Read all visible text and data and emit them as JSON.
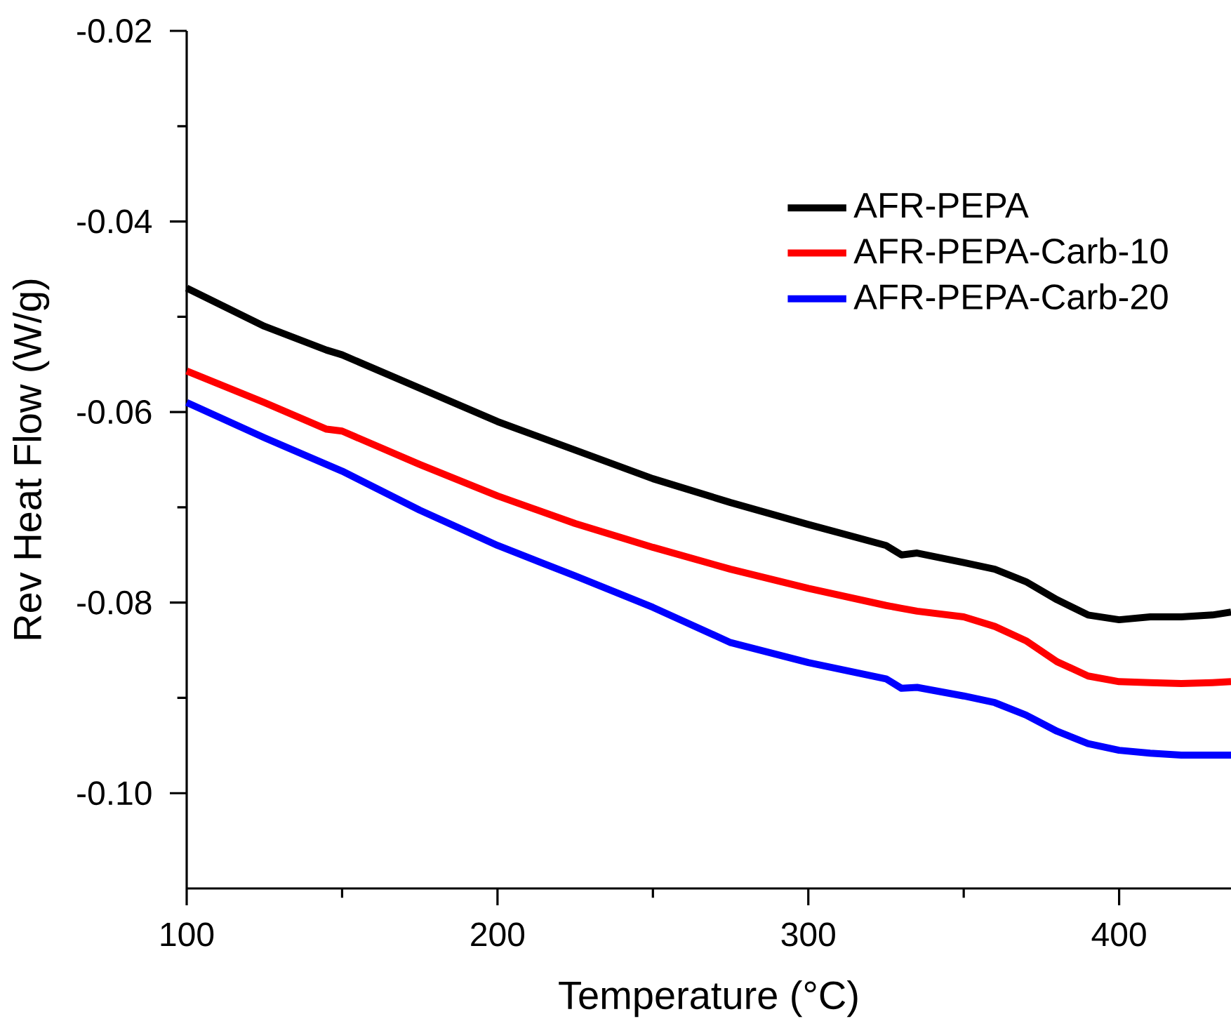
{
  "chart_data": {
    "type": "line",
    "xlabel": "Temperature (°C)",
    "ylabel": "Rev Heat Flow (W/g)",
    "xlim": [
      100,
      436
    ],
    "ylim": [
      -0.11,
      -0.02
    ],
    "xticks": [
      100,
      200,
      300,
      400
    ],
    "yticks": [
      -0.02,
      -0.04,
      -0.06,
      -0.08,
      {
        "value": -0.1,
        "label": "-0.10"
      }
    ],
    "legend": "top right",
    "grid": false,
    "marker": "none",
    "line_style": "solid",
    "x": [
      100,
      125,
      145,
      150,
      175,
      200,
      225,
      250,
      275,
      300,
      325,
      330,
      335,
      350,
      360,
      370,
      380,
      390,
      400,
      410,
      420,
      430,
      436
    ],
    "series": [
      {
        "name": "AFR-PEPA",
        "color": "#000000",
        "values": [
          -0.047,
          -0.051,
          -0.0535,
          -0.054,
          -0.0575,
          -0.061,
          -0.064,
          -0.067,
          -0.0695,
          -0.0718,
          -0.074,
          -0.075,
          -0.0748,
          -0.0758,
          -0.0765,
          -0.0778,
          -0.0797,
          -0.0813,
          -0.0818,
          -0.0815,
          -0.0815,
          -0.0813,
          -0.081
        ]
      },
      {
        "name": "AFR-PEPA-Carb-10",
        "color": "#ff0000",
        "values": [
          -0.0557,
          -0.059,
          -0.0618,
          -0.062,
          -0.0655,
          -0.0688,
          -0.0717,
          -0.0742,
          -0.0765,
          -0.0785,
          -0.0803,
          -0.0806,
          -0.0809,
          -0.0815,
          -0.0825,
          -0.084,
          -0.0862,
          -0.0877,
          -0.0883,
          -0.0884,
          -0.0885,
          -0.0884,
          -0.0883
        ]
      },
      {
        "name": "AFR-PEPA-Carb-20",
        "color": "#0000ff",
        "values": [
          -0.059,
          -0.0627,
          -0.0655,
          -0.0662,
          -0.0703,
          -0.074,
          -0.0772,
          -0.0805,
          -0.0842,
          -0.0863,
          -0.088,
          -0.089,
          -0.0889,
          -0.0898,
          -0.0905,
          -0.0918,
          -0.0935,
          -0.0948,
          -0.0955,
          -0.0958,
          -0.096,
          -0.096,
          -0.096
        ]
      }
    ]
  }
}
